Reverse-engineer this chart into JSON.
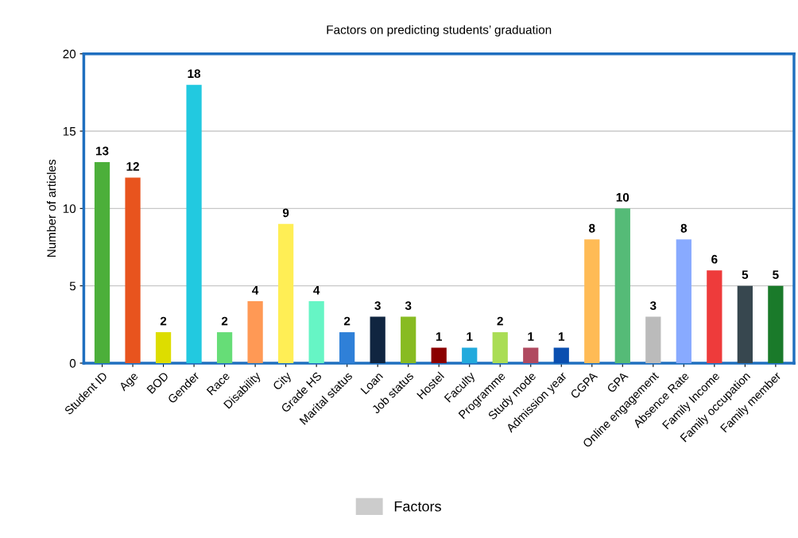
{
  "chart_data": {
    "type": "bar",
    "title": "Factors on predicting students’ graduation",
    "ylabel": "Number of articles",
    "categories": [
      "Student ID",
      "Age",
      "BOD",
      "Gender",
      "Race",
      "Disability",
      "City",
      "Grade HS",
      "Marital status",
      "Loan",
      "Job status",
      "Hostel",
      "Faculty",
      "Programme",
      "Study mode",
      "Admission year",
      "CGPA",
      "GPA",
      "Online engagement",
      "Absence Rate",
      "Family Income",
      "Family occupation",
      "Family member"
    ],
    "series": [
      {
        "name": "Factors",
        "color": "#cccccc",
        "values": [
          13,
          12,
          2,
          18,
          2,
          4,
          9,
          4,
          2,
          3,
          3,
          1,
          1,
          2,
          1,
          1,
          8,
          10,
          3,
          8,
          6,
          5,
          5
        ],
        "colors": [
          "#4caf3a",
          "#e8541e",
          "#dddd00",
          "#22c9e0",
          "#66dd77",
          "#ff9955",
          "#ffee55",
          "#66f5c5",
          "#2f80d8",
          "#102540",
          "#88bb22",
          "#8b0000",
          "#22aadd",
          "#aadd55",
          "#b04a60",
          "#0a4fb0",
          "#ffbb55",
          "#55bb77",
          "#bbbbbb",
          "#88aaff",
          "#ee3b3b",
          "#37474f",
          "#1a7a2a"
        ]
      }
    ],
    "ylim": [
      0,
      20
    ],
    "yticks": [
      0,
      5,
      10,
      15,
      20
    ],
    "grid": "y",
    "legend": "bottom",
    "data_labels": true
  }
}
